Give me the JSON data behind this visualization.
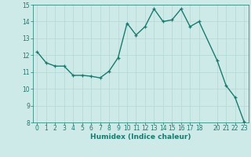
{
  "x": [
    0,
    1,
    2,
    3,
    4,
    5,
    6,
    7,
    8,
    9,
    10,
    11,
    12,
    13,
    14,
    15,
    16,
    17,
    18,
    20,
    21,
    22,
    23
  ],
  "y": [
    12.2,
    11.55,
    11.35,
    11.35,
    10.8,
    10.8,
    10.75,
    10.65,
    11.05,
    11.85,
    13.9,
    13.2,
    13.7,
    14.75,
    14.0,
    14.1,
    14.75,
    13.7,
    14.0,
    11.7,
    10.2,
    9.5,
    8.05
  ],
  "line_color": "#1a7a6e",
  "marker": "+",
  "marker_size": 3.5,
  "marker_lw": 0.9,
  "bg_color": "#ceeae8",
  "grid_color": "#b2d8d4",
  "xlabel": "Humidex (Indice chaleur)",
  "xlim": [
    -0.5,
    23.5
  ],
  "ylim": [
    8,
    15
  ],
  "yticks": [
    8,
    9,
    10,
    11,
    12,
    13,
    14,
    15
  ],
  "xticks": [
    0,
    1,
    2,
    3,
    4,
    5,
    6,
    7,
    8,
    9,
    10,
    11,
    12,
    13,
    14,
    15,
    16,
    17,
    18,
    20,
    21,
    22,
    23
  ],
  "xlabel_color": "#1a7a6e",
  "tick_color": "#1a7a6e",
  "line_width": 1.0,
  "tick_fontsize": 5.5,
  "xlabel_fontsize": 6.5
}
